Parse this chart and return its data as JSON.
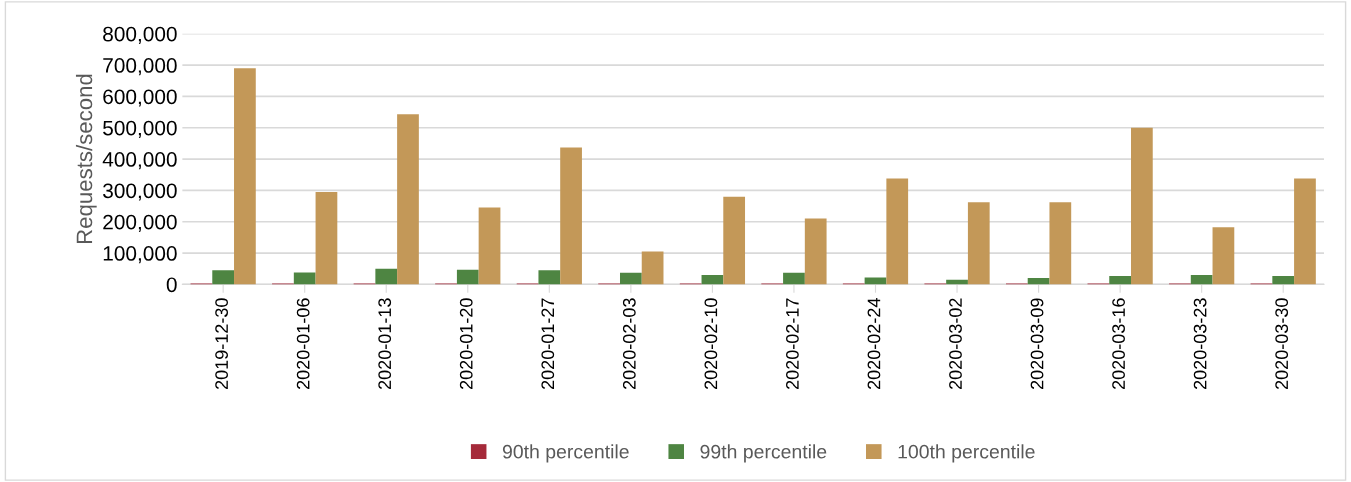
{
  "chart_data": {
    "type": "bar",
    "ylabel": "Requests/second",
    "categories": [
      "2019-12-30",
      "2020-01-06",
      "2020-01-13",
      "2020-01-20",
      "2020-01-27",
      "2020-02-03",
      "2020-02-10",
      "2020-02-17",
      "2020-02-24",
      "2020-03-02",
      "2020-03-09",
      "2020-03-16",
      "2020-03-23",
      "2020-03-30"
    ],
    "series": [
      {
        "name": "90th percentile",
        "color": "#a52a3a",
        "values": [
          3000,
          3000,
          3000,
          3000,
          3000,
          3000,
          3000,
          3000,
          3000,
          3000,
          3000,
          3000,
          3000,
          3000
        ]
      },
      {
        "name": "99th percentile",
        "color": "#4e8542",
        "values": [
          45000,
          38000,
          50000,
          47000,
          45000,
          37000,
          30000,
          37000,
          22000,
          15000,
          20000,
          27000,
          30000,
          27000
        ]
      },
      {
        "name": "100th percentile",
        "color": "#c39858",
        "values": [
          690000,
          295000,
          543000,
          245000,
          437000,
          105000,
          280000,
          210000,
          338000,
          262000,
          262000,
          500000,
          182000,
          338000
        ]
      }
    ],
    "ylim": [
      0,
      800000
    ],
    "yticks": [
      {
        "value": 0,
        "label": "0"
      },
      {
        "value": 100000,
        "label": "100,000"
      },
      {
        "value": 200000,
        "label": "200,000"
      },
      {
        "value": 300000,
        "label": "300,000"
      },
      {
        "value": 400000,
        "label": "400,000"
      },
      {
        "value": 500000,
        "label": "500,000"
      },
      {
        "value": 600000,
        "label": "600,000"
      },
      {
        "value": 700000,
        "label": "700,000"
      },
      {
        "value": 800000,
        "label": "800,000"
      }
    ],
    "grid": "y",
    "legend": "bottom"
  }
}
